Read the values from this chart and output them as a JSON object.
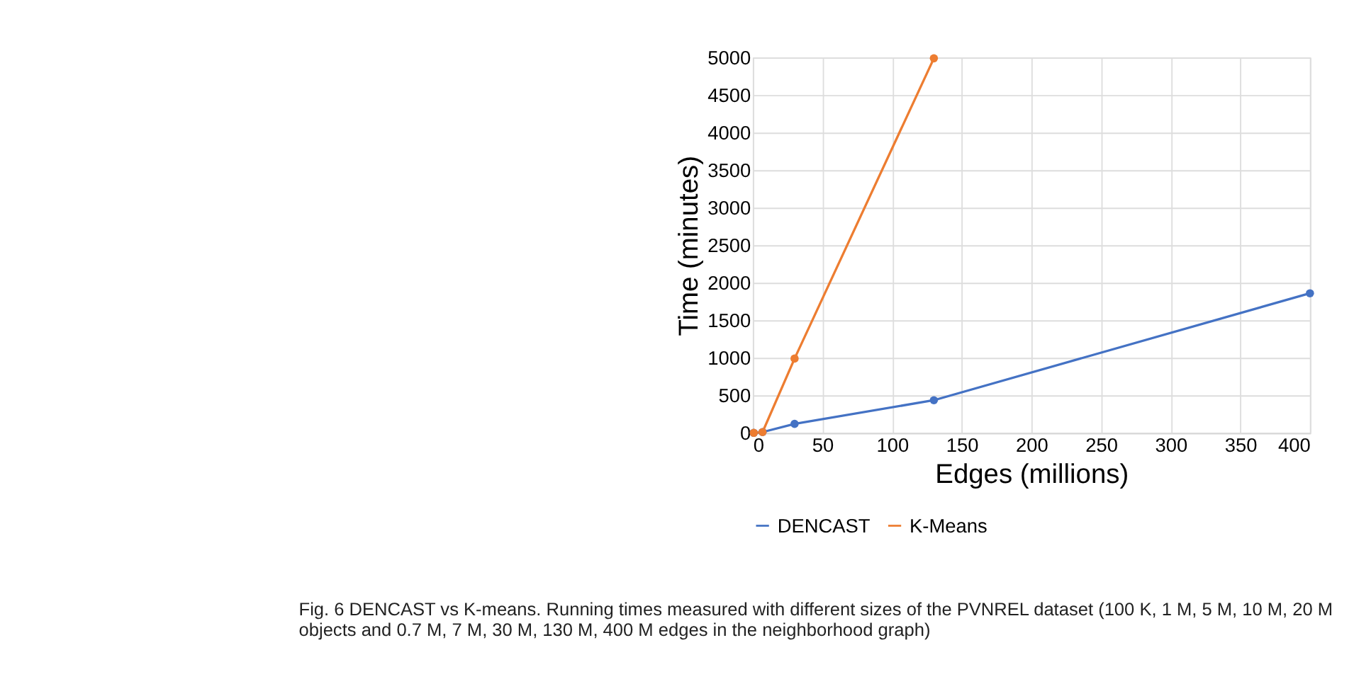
{
  "chart_data": {
    "type": "line",
    "xlabel": "Edges (millions)",
    "ylabel": "Time (minutes)",
    "xlim": [
      0,
      400
    ],
    "xticks": [
      0,
      50,
      100,
      150,
      200,
      250,
      300,
      350,
      400
    ],
    "ylim": [
      0,
      5000
    ],
    "yticks": [
      0,
      500,
      1000,
      1500,
      2000,
      2500,
      3000,
      3500,
      4000,
      4500,
      5000
    ],
    "grid": true,
    "legend": "bottom",
    "marker": "circle",
    "line_style": "solid",
    "series": [
      {
        "name": "DENCAST",
        "color": "#4472c4",
        "x": [
          0.7,
          7,
          30,
          130,
          400
        ],
        "values": [
          0,
          10,
          120,
          435,
          1860
        ]
      },
      {
        "name": "K-Means",
        "color": "#ed7d31",
        "x": [
          0.7,
          7,
          30,
          130
        ],
        "values": [
          0,
          10,
          990,
          4990
        ]
      }
    ],
    "annotations": [
      "Fig. 6  DENCAST vs K-means. Running times measured with different sizes of the PVNREL dataset (100 K, 1 M, 5 M, 10 M, 20 M objects and 0.7 M, 7 M, 30 M, 130 M, 400 M edges in the neighborhood graph)"
    ]
  }
}
